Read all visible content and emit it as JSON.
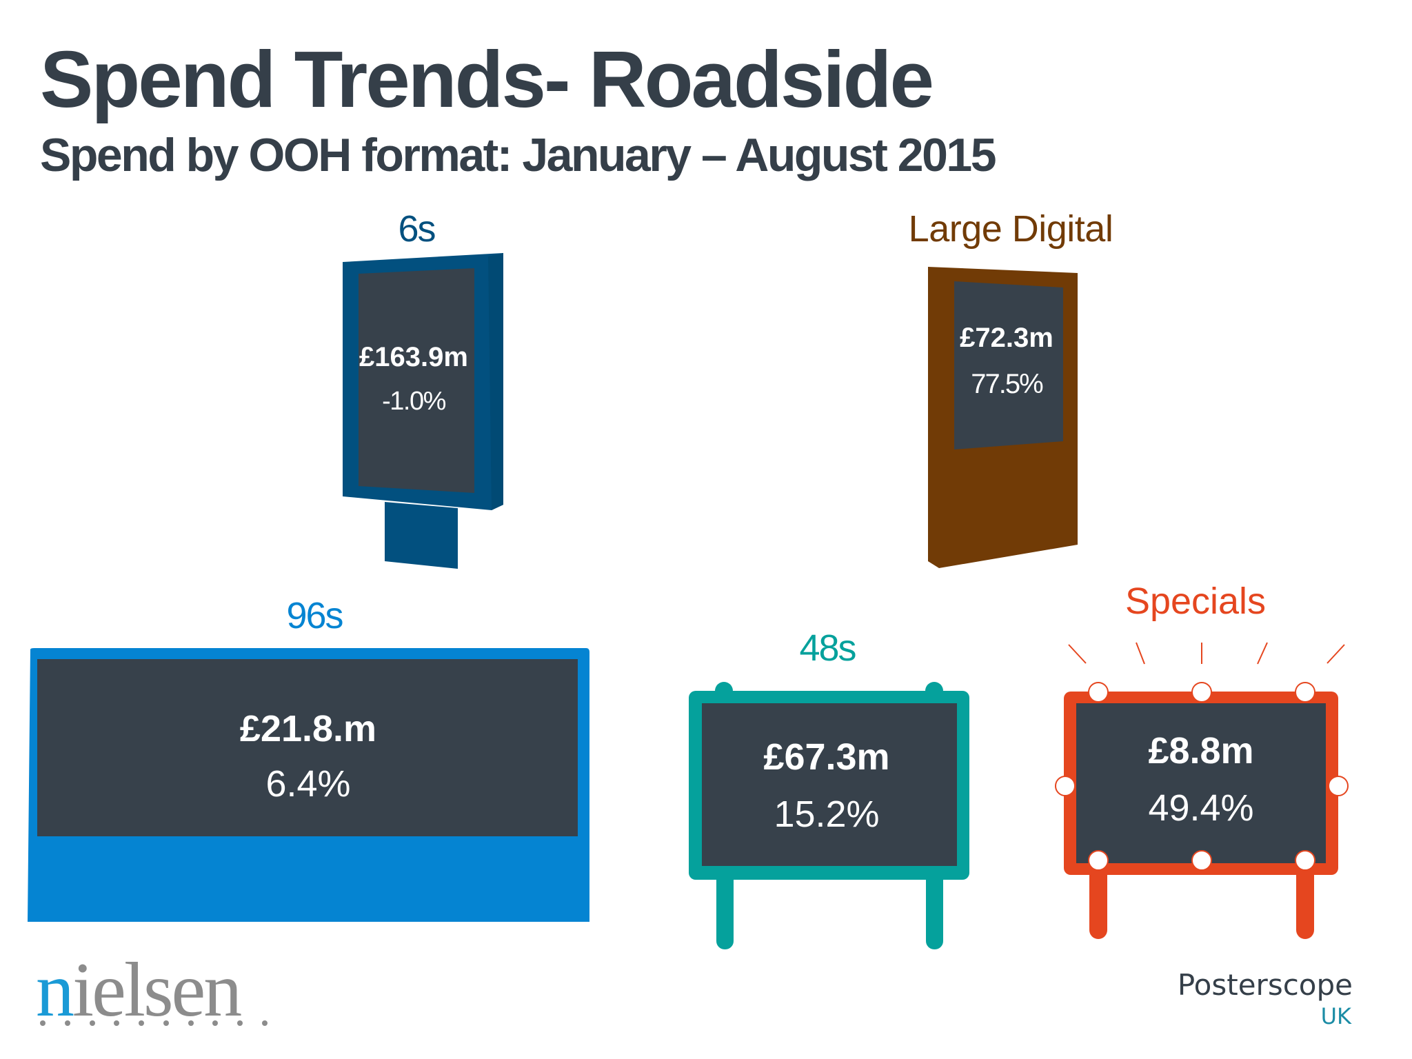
{
  "title": "Spend Trends- Roadside",
  "subtitle": "Spend by OOH format: January – August 2015",
  "colors": {
    "text_dark": "#353f49",
    "screen": "#37414b",
    "format_6s": "#02507f",
    "format_large_digital": "#713b06",
    "format_96s": "#0584d2",
    "format_48s": "#05a19c",
    "format_specials": "#e5461f"
  },
  "formats": {
    "six_s": {
      "label": "6s",
      "amount": "£163.9m",
      "change": "-1.0%"
    },
    "large_digital": {
      "label": "Large Digital",
      "amount": "£72.3m",
      "change": "77.5%"
    },
    "ninety_six_s": {
      "label": "96s",
      "amount": "£21.8.m",
      "change": "6.4%"
    },
    "forty_eight_s": {
      "label": "48s",
      "amount": "£67.3m",
      "change": "15.2%"
    },
    "specials": {
      "label": "Specials",
      "amount": "£8.8m",
      "change": "49.4%"
    }
  },
  "logos": {
    "nielsen_first": "n",
    "nielsen_rest": "ielsen",
    "posterscope": "Posterscope",
    "posterscope_region": "UK"
  }
}
